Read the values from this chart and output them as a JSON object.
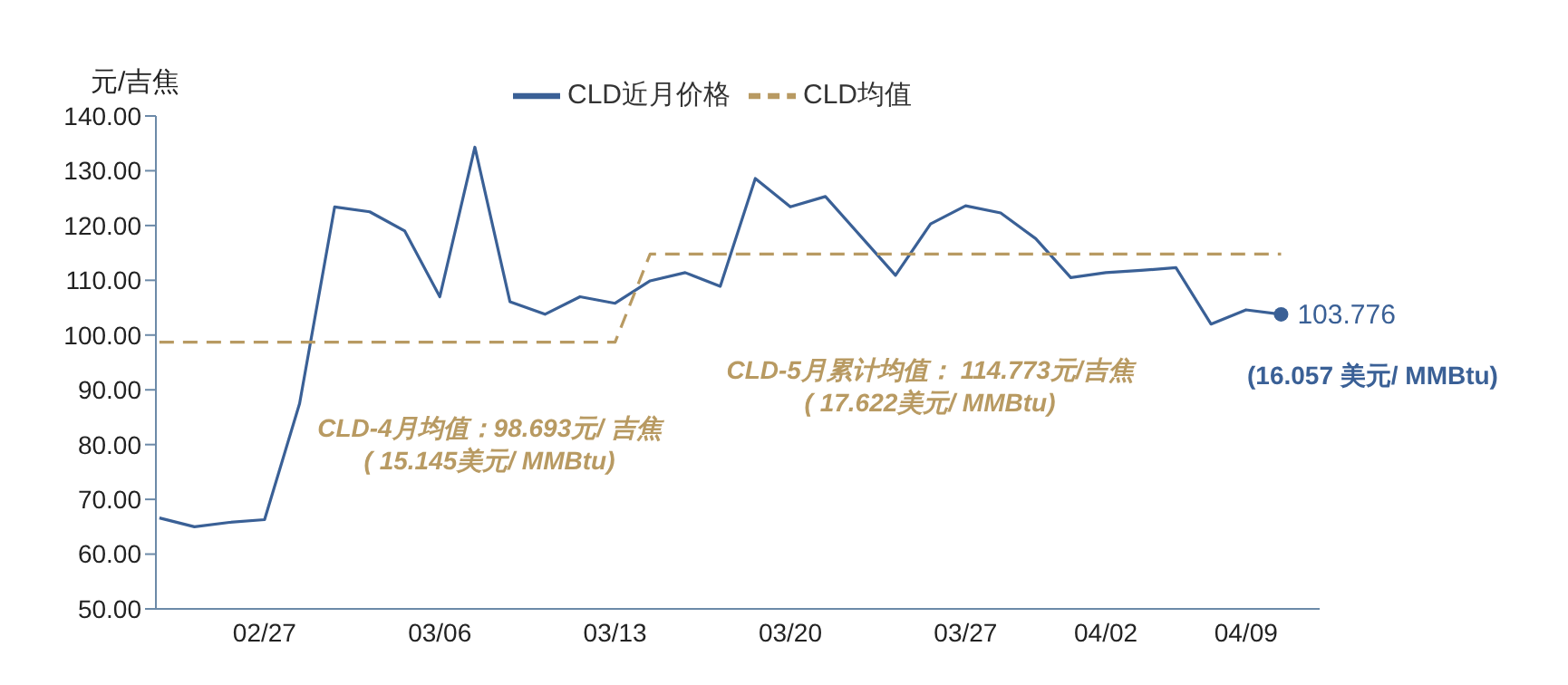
{
  "chart_data": {
    "type": "line",
    "ylabel": "元/吉焦",
    "legend": "top",
    "marker": "none",
    "categories": [
      null,
      null,
      null,
      "02/27",
      null,
      null,
      null,
      null,
      "03/06",
      null,
      null,
      null,
      null,
      "03/13",
      null,
      null,
      null,
      null,
      "03/20",
      null,
      null,
      null,
      null,
      "03/27",
      null,
      null,
      null,
      "04/02",
      null,
      null,
      null,
      "04/09",
      null
    ],
    "ylim": [
      50,
      140
    ],
    "yticks": [
      {
        "value": 50,
        "label": "50.00"
      },
      {
        "value": 60,
        "label": "60.00"
      },
      {
        "value": 70,
        "label": "70.00"
      },
      {
        "value": 80,
        "label": "80.00"
      },
      {
        "value": 90,
        "label": "90.00"
      },
      {
        "value": 100,
        "label": "100.00"
      },
      {
        "value": 110,
        "label": "110.00"
      },
      {
        "value": 120,
        "label": "120.00"
      },
      {
        "value": 130,
        "label": "130.00"
      },
      {
        "value": 140,
        "label": "140.00"
      }
    ],
    "series": [
      {
        "name": "CLD近月价格",
        "color": "#3a6096",
        "line_style": "solid",
        "values": [
          66.6,
          65.0,
          65.8,
          66.3,
          87.5,
          123.4,
          122.5,
          119.0,
          107.0,
          134.3,
          106.1,
          103.8,
          107.0,
          105.8,
          109.9,
          111.4,
          108.9,
          128.6,
          123.4,
          125.3,
          118.1,
          110.9,
          120.3,
          123.6,
          122.3,
          117.6,
          110.5,
          111.4,
          111.8,
          112.3,
          102.0,
          104.6,
          103.776
        ],
        "value_labels": [
          null,
          null,
          null,
          null,
          null,
          null,
          null,
          null,
          null,
          null,
          null,
          null,
          null,
          null,
          null,
          null,
          null,
          null,
          null,
          null,
          null,
          null,
          null,
          null,
          null,
          null,
          null,
          null,
          null,
          null,
          null,
          null,
          "103.776"
        ]
      },
      {
        "name": "CLD均值",
        "color": "#b89a62",
        "line_style": "dashed",
        "values": [
          98.7,
          98.7,
          98.7,
          98.7,
          98.7,
          98.7,
          98.7,
          98.7,
          98.7,
          98.7,
          98.7,
          98.7,
          98.7,
          98.7,
          114.8,
          114.8,
          114.8,
          114.8,
          114.8,
          114.8,
          114.8,
          114.8,
          114.8,
          114.8,
          114.8,
          114.8,
          114.8,
          114.8,
          114.8,
          114.8,
          114.8,
          114.8,
          114.8
        ]
      }
    ],
    "annotations": [
      "CLD-4月均值：98.693元/ 吉焦",
      "( 15.145美元/ MMBtu)",
      "CLD-5月累计均值： 114.773元/吉焦",
      "( 17.622美元/ MMBtu)",
      "(16.057 美元/ MMBtu)"
    ]
  }
}
